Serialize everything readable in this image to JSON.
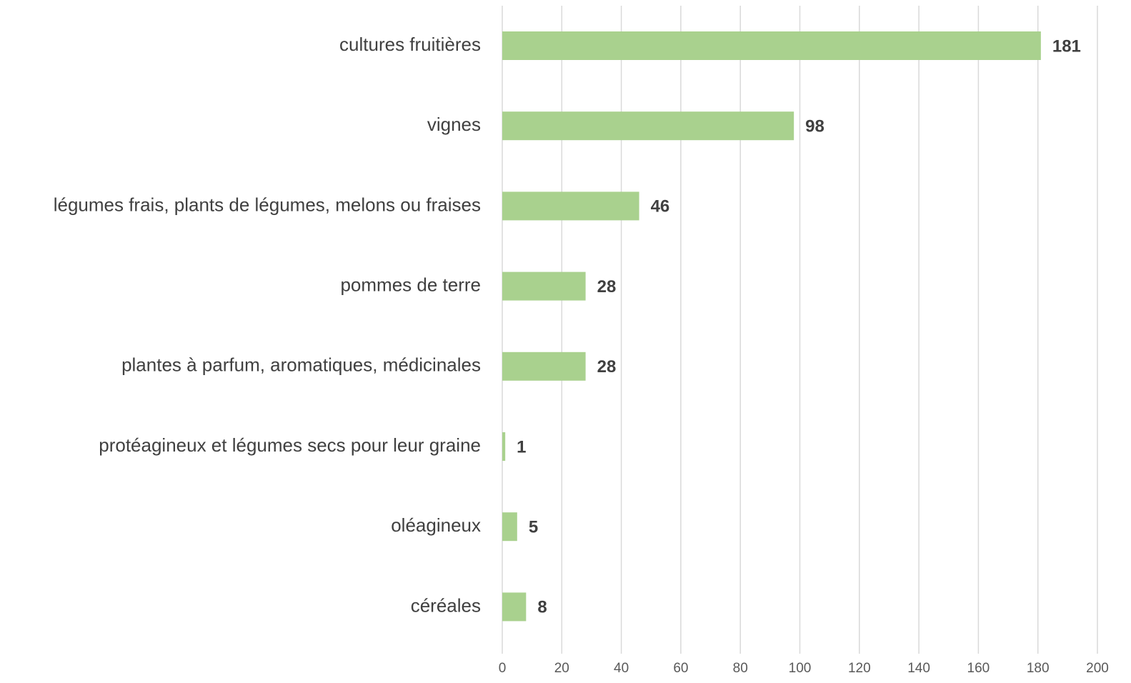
{
  "chart_data": {
    "type": "bar",
    "orientation": "horizontal",
    "categories": [
      "cultures fruitières",
      "vignes",
      "légumes frais, plants de légumes, melons ou fraises",
      "pommes de terre",
      "plantes à parfum, aromatiques, médicinales",
      "protéagineux et légumes secs pour leur graine",
      "oléagineux",
      "céréales"
    ],
    "values": [
      181,
      98,
      46,
      28,
      28,
      1,
      5,
      8
    ],
    "color": "#a9d18e",
    "xlim": [
      0,
      200
    ],
    "xticks": [
      0,
      20,
      40,
      60,
      80,
      100,
      120,
      140,
      160,
      180,
      200
    ],
    "grid": true
  }
}
